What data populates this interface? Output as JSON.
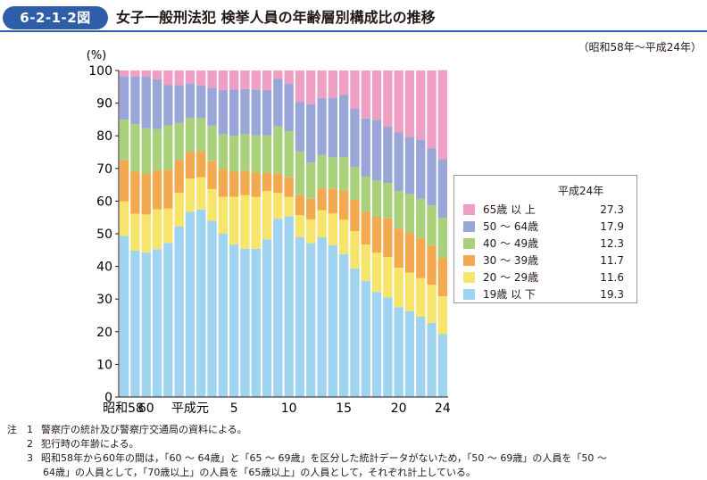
{
  "header": {
    "figure_number": "6-2-1-2図",
    "title": "女子一般刑法犯 検挙人員の年齢層別構成比の推移",
    "period": "（昭和58年～平成24年）"
  },
  "colors": {
    "age_19_under": "#9fd3f0",
    "age_20_29": "#f7e46a",
    "age_30_39": "#f2a94f",
    "age_40_49": "#a9d17c",
    "age_50_64": "#9aa6d8",
    "age_65_over": "#ef9ec4",
    "title_badge": "#2e5ea8"
  },
  "chart_data": {
    "type": "bar",
    "stacked": true,
    "ylabel": "(%)",
    "ylim": [
      0,
      100
    ],
    "yticks": [
      0,
      10,
      20,
      30,
      40,
      50,
      60,
      70,
      80,
      90,
      100
    ],
    "x_tick_labels": [
      {
        "index": 0,
        "label": "昭和58"
      },
      {
        "index": 2,
        "label": "60"
      },
      {
        "index": 6,
        "label": "平成元"
      },
      {
        "index": 10,
        "label": "5"
      },
      {
        "index": 15,
        "label": "10"
      },
      {
        "index": 20,
        "label": "15"
      },
      {
        "index": 25,
        "label": "20"
      },
      {
        "index": 29,
        "label": "24"
      }
    ],
    "categories": [
      "58",
      "59",
      "60",
      "61",
      "62",
      "63",
      "元",
      "2",
      "3",
      "4",
      "5",
      "6",
      "7",
      "8",
      "9",
      "10",
      "11",
      "12",
      "13",
      "14",
      "15",
      "16",
      "17",
      "18",
      "19",
      "20",
      "21",
      "22",
      "23",
      "24"
    ],
    "series": [
      {
        "name": "19歳 以 下",
        "legend_value": "19.3",
        "color_key": "age_19_under",
        "values": [
          49.3,
          44.8,
          44.3,
          45.3,
          47.2,
          52.2,
          56.7,
          57.4,
          54.0,
          50.0,
          46.7,
          45.4,
          45.4,
          48.3,
          54.6,
          55.3,
          48.9,
          47.1,
          48.9,
          46.5,
          43.8,
          39.4,
          35.5,
          32.2,
          30.5,
          27.5,
          26.3,
          24.6,
          22.7,
          19.3
        ]
      },
      {
        "name": "20 ～ 29歳",
        "legend_value": "11.6",
        "color_key": "age_20_29",
        "values": [
          10.6,
          11.3,
          11.6,
          12.2,
          10.5,
          10.4,
          10.2,
          9.9,
          9.7,
          11.3,
          14.6,
          16.4,
          15.9,
          14.8,
          7.9,
          6.0,
          6.8,
          7.3,
          8.3,
          9.7,
          10.5,
          11.4,
          11.2,
          12.0,
          12.4,
          12.1,
          11.8,
          11.8,
          11.7,
          11.6
        ]
      },
      {
        "name": "30 ～ 39歳",
        "legend_value": "11.7",
        "color_key": "age_30_39",
        "values": [
          12.6,
          13.0,
          12.4,
          11.9,
          11.9,
          10.0,
          8.2,
          8.1,
          8.5,
          8.5,
          7.7,
          7.5,
          7.4,
          5.6,
          5.9,
          6.0,
          6.1,
          6.3,
          6.7,
          7.5,
          9.0,
          9.6,
          10.1,
          11.0,
          11.8,
          12.0,
          12.3,
          12.3,
          12.0,
          11.7
        ]
      },
      {
        "name": "40 ～ 49歳",
        "legend_value": "12.3",
        "color_key": "age_40_49",
        "values": [
          12.4,
          14.5,
          14.0,
          12.6,
          13.6,
          11.4,
          10.3,
          10.0,
          10.9,
          10.7,
          11.0,
          11.2,
          11.4,
          11.4,
          14.5,
          14.1,
          13.4,
          11.1,
          10.2,
          9.7,
          10.2,
          10.1,
          10.7,
          11.1,
          10.8,
          11.5,
          11.8,
          12.0,
          12.3,
          12.3
        ]
      },
      {
        "name": "50 ～ 64歳",
        "legend_value": "17.9",
        "color_key": "age_50_64",
        "values": [
          13.4,
          14.5,
          15.8,
          15.3,
          12.3,
          11.5,
          10.7,
          10.0,
          11.6,
          13.5,
          14.1,
          13.8,
          14.1,
          13.9,
          14.5,
          14.6,
          15.1,
          17.9,
          17.5,
          18.3,
          19.0,
          17.9,
          17.8,
          18.6,
          17.4,
          17.9,
          17.5,
          18.1,
          17.4,
          17.9
        ]
      },
      {
        "name": "65歳 以 上",
        "legend_value": "27.3",
        "color_key": "age_65_over",
        "values": [
          1.7,
          1.9,
          1.9,
          2.7,
          4.5,
          4.5,
          3.9,
          4.6,
          5.3,
          6.0,
          5.9,
          5.7,
          5.8,
          6.0,
          2.6,
          4.0,
          9.7,
          10.3,
          8.4,
          8.3,
          7.5,
          11.6,
          14.7,
          15.1,
          17.1,
          19.0,
          20.3,
          21.2,
          23.9,
          27.3
        ]
      }
    ],
    "legend": {
      "title": "平成24年",
      "placement": "right-inside"
    }
  },
  "notes": {
    "mark": "注",
    "items": [
      {
        "num": "1",
        "text": "警察庁の統計及び警察庁交通局の資料による。"
      },
      {
        "num": "2",
        "text": "犯行時の年齢による。"
      },
      {
        "num": "3",
        "text": "昭和58年から60年の間は，「60 ～ 64歳」と「65 ～ 69歳」を区分した統計データがないため，「50 ～ 69歳」の人員を「50 ～"
      }
    ],
    "continuation": "64歳」の人員として，「70歳以上」の人員を「65歳以上」の人員として，それぞれ計上している。"
  }
}
